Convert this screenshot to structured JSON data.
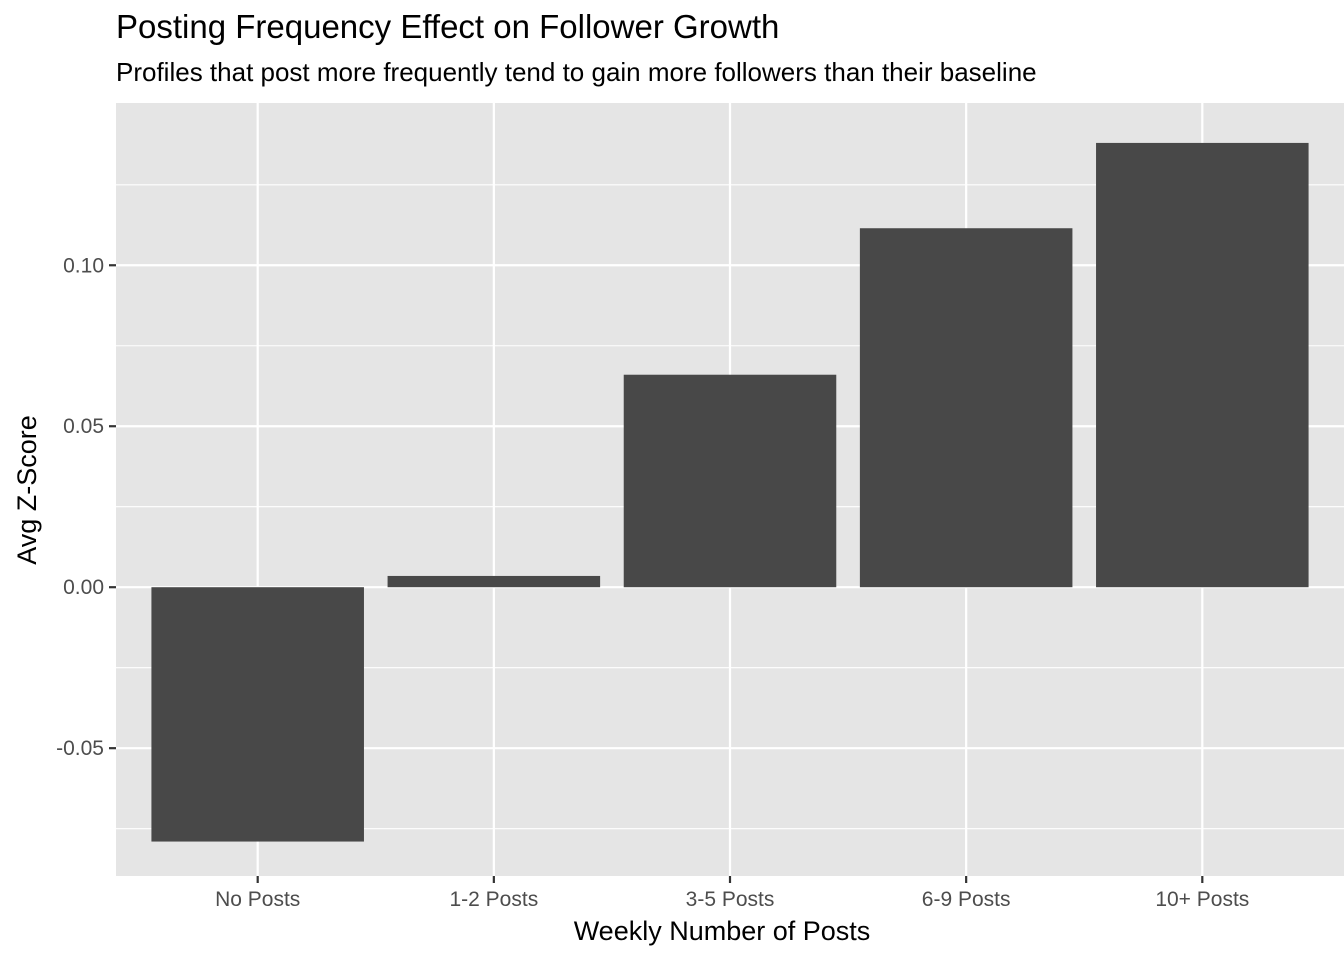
{
  "chart_data": {
    "type": "bar",
    "title": "Posting Frequency Effect on Follower Growth",
    "subtitle": "Profiles that post more frequently tend to gain more followers than their baseline",
    "xlabel": "Weekly Number of Posts",
    "ylabel": "Avg Z-Score",
    "categories": [
      "No Posts",
      "1-2 Posts",
      "3-5 Posts",
      "6-9 Posts",
      "10+ Posts"
    ],
    "values": [
      -0.079,
      0.0035,
      0.066,
      0.1115,
      0.138
    ],
    "ylim": [
      -0.0897,
      0.1504
    ],
    "yticks": [
      -0.05,
      0.0,
      0.05,
      0.1
    ],
    "ytick_labels": [
      "-0.05",
      "0.00",
      "0.05",
      "0.10"
    ],
    "grid": true,
    "legend": "none",
    "colors": {
      "bar": "#484848",
      "panel": "#e5e5e5",
      "grid": "#ffffff",
      "axis_text": "#4d4d4d"
    }
  }
}
